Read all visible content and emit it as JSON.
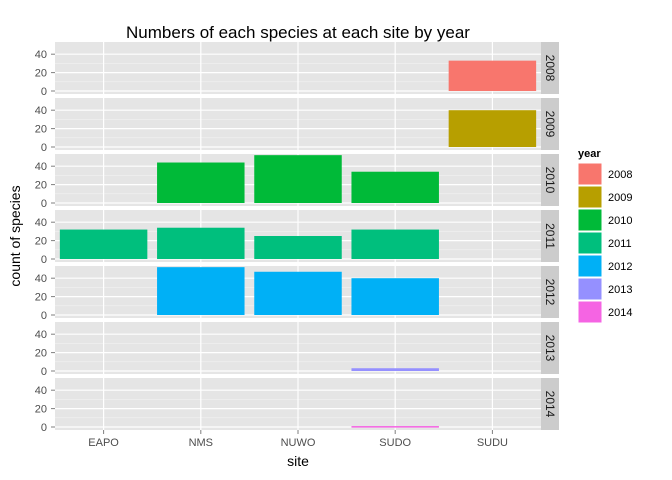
{
  "chart_data": {
    "type": "bar",
    "title": "Numbers of each species at each site by year",
    "xlabel": "site",
    "ylabel": "count of species",
    "categories": [
      "EAPO",
      "NMS",
      "NUWO",
      "SUDO",
      "SUDU"
    ],
    "facets": [
      "2008",
      "2009",
      "2010",
      "2011",
      "2012",
      "2013",
      "2014"
    ],
    "facet_layout": "rows, strip labels on right",
    "ylim": [
      0,
      50
    ],
    "yticks": [
      0,
      20,
      40
    ],
    "grid": true,
    "series": [
      {
        "name": "2008",
        "color": "#F8766D",
        "values": [
          0,
          0,
          0,
          0,
          33
        ]
      },
      {
        "name": "2009",
        "color": "#B79F00",
        "values": [
          0,
          0,
          0,
          0,
          40
        ]
      },
      {
        "name": "2010",
        "color": "#00BA38",
        "values": [
          0,
          44,
          52,
          34,
          0
        ]
      },
      {
        "name": "2011",
        "color": "#00BF7D",
        "values": [
          32,
          34,
          25,
          32,
          0
        ]
      },
      {
        "name": "2012",
        "color": "#00B0F6",
        "values": [
          0,
          52,
          47,
          40,
          0
        ]
      },
      {
        "name": "2013",
        "color": "#9590FF",
        "values": [
          0,
          0,
          0,
          3,
          0
        ]
      },
      {
        "name": "2014",
        "color": "#F564E3",
        "values": [
          0,
          0,
          0,
          1,
          0
        ]
      }
    ],
    "legend": {
      "title": "year",
      "position": "right"
    }
  }
}
